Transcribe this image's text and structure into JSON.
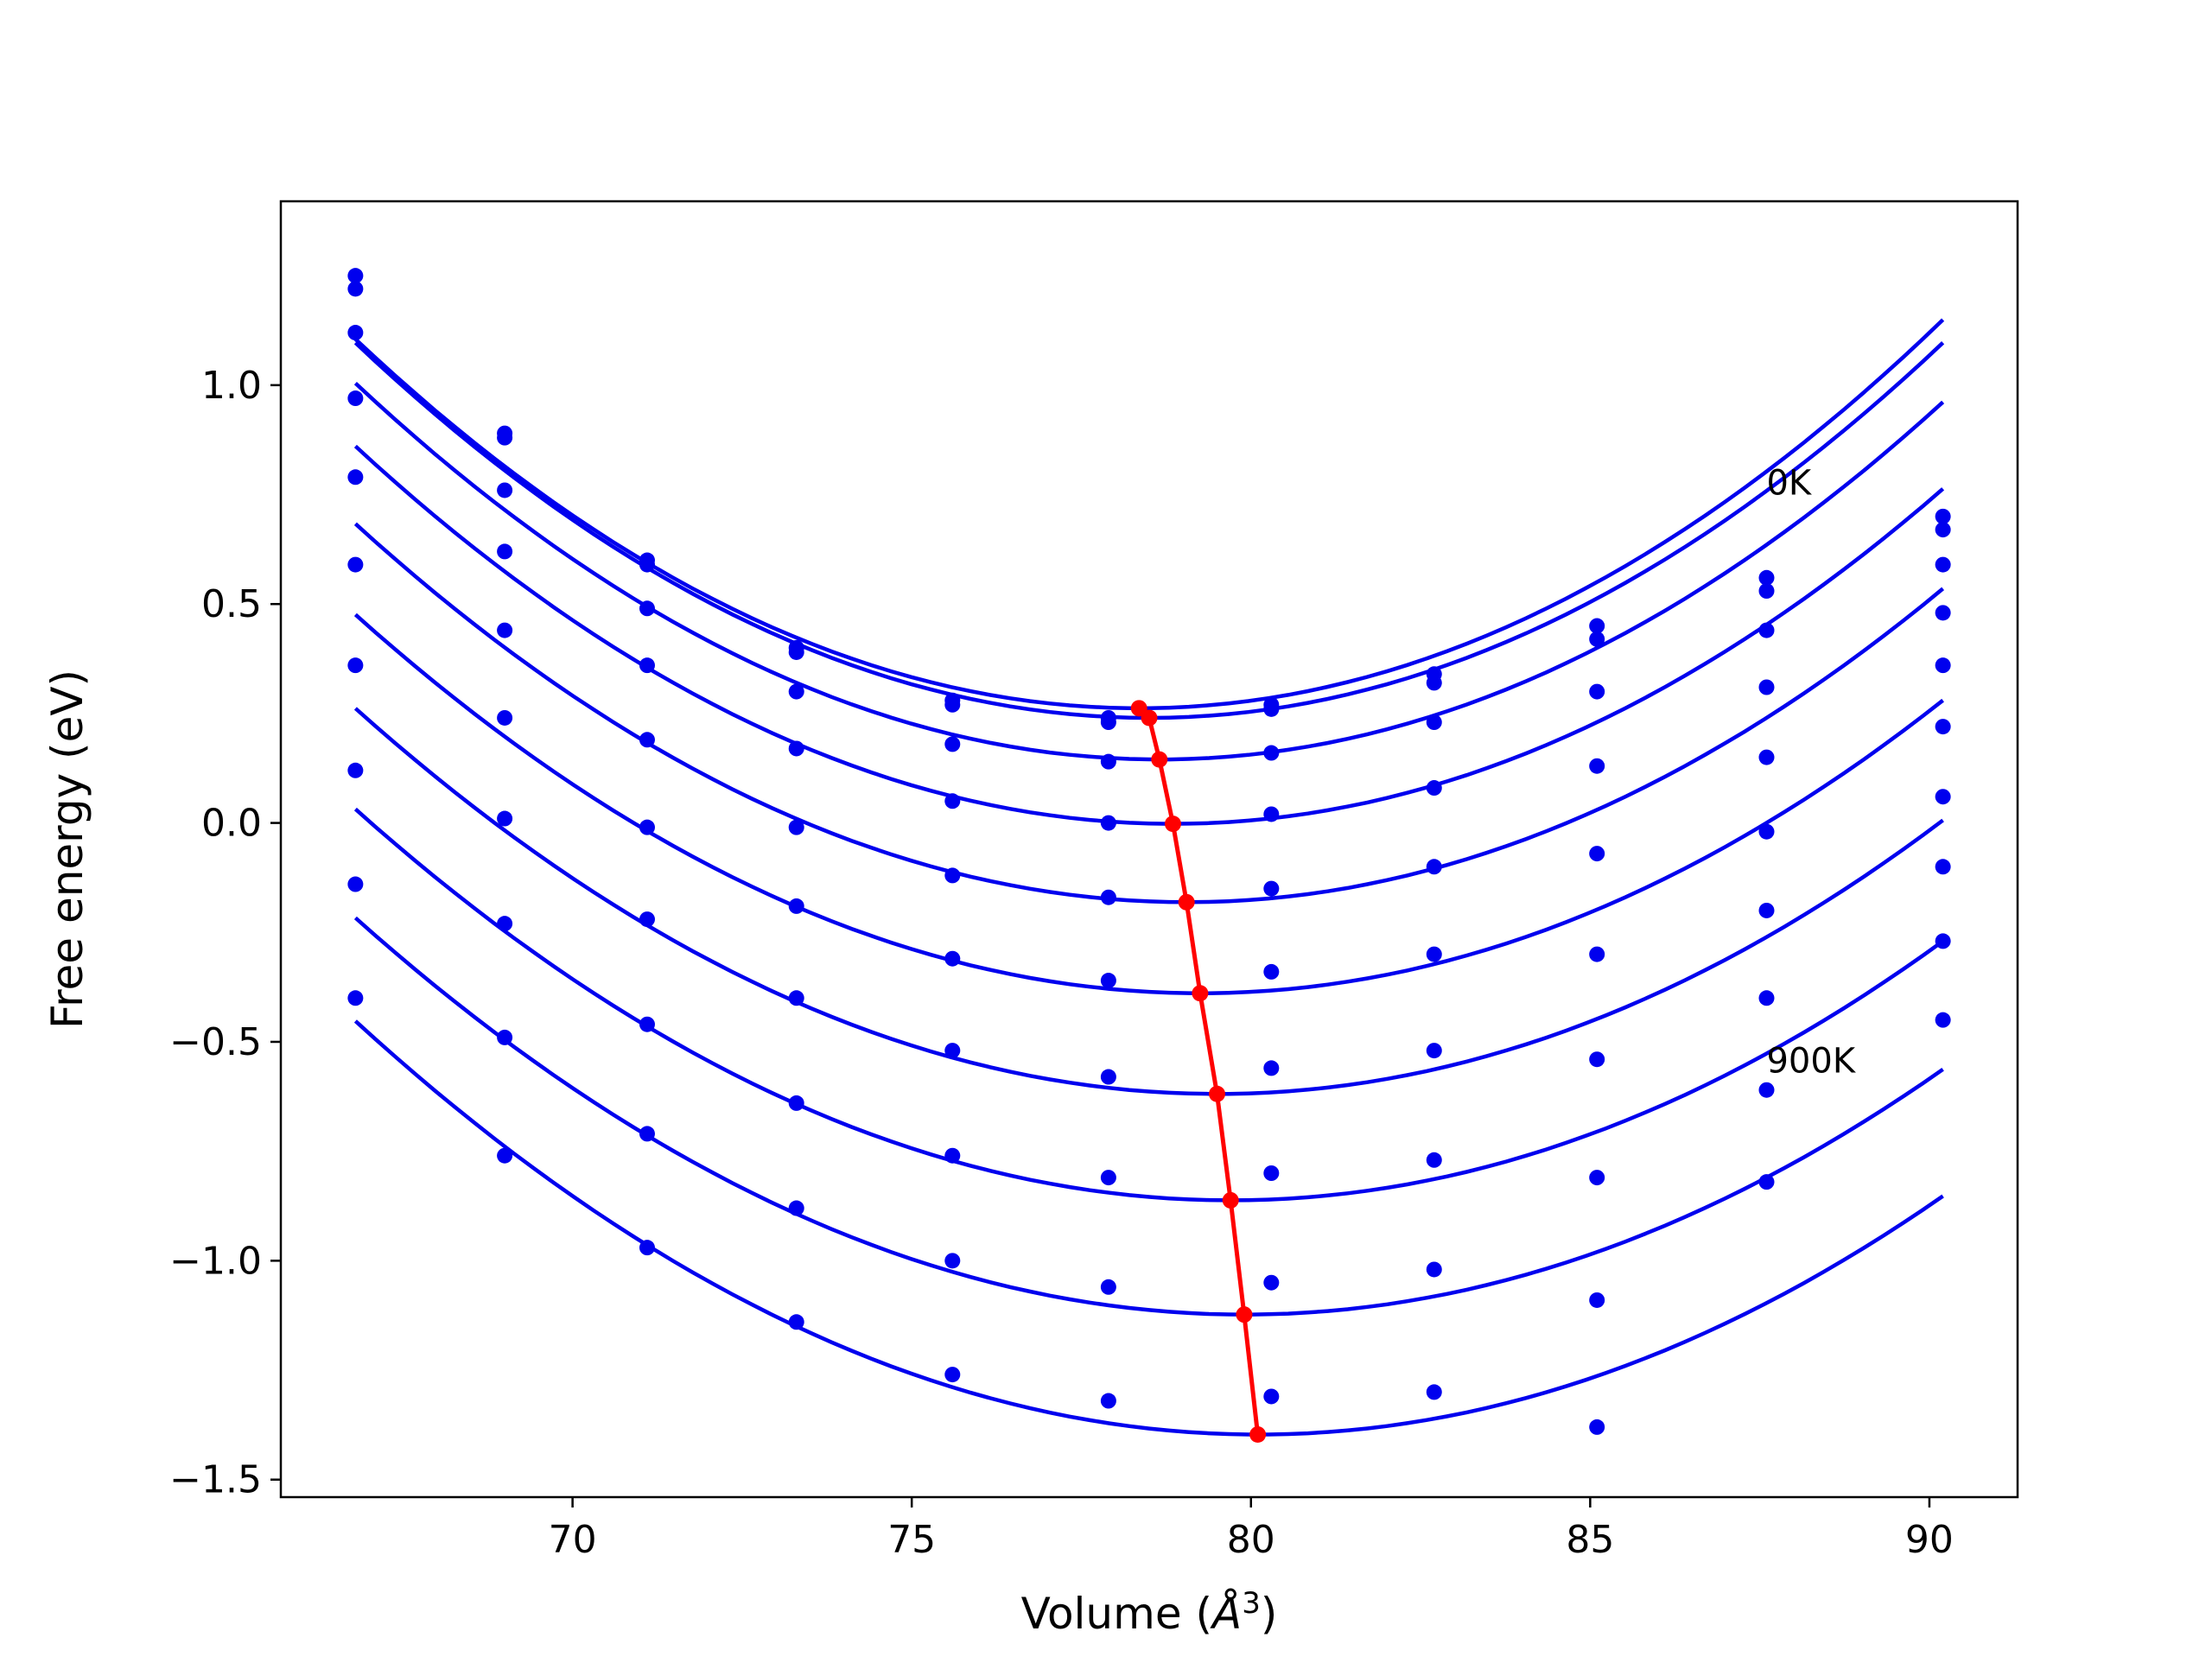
{
  "chart_data": {
    "type": "scatter",
    "xlabel_main": "Volume (",
    "xlabel_unit": "Å",
    "xlabel_sup": "3",
    "xlabel_close": ")",
    "ylabel": "Free energy (eV)",
    "xlim": [
      65.7,
      91.3
    ],
    "ylim": [
      -1.54,
      1.42
    ],
    "xticks": [
      70,
      75,
      80,
      85,
      90
    ],
    "yticks": [
      1.0,
      0.5,
      0.0,
      -0.5,
      -1.0,
      -1.5
    ],
    "xtick_labels": [
      "70",
      "75",
      "80",
      "85",
      "90"
    ],
    "ytick_labels": [
      "1.0",
      "0.5",
      "0.0",
      "−0.5",
      "−1.0",
      "−1.5"
    ],
    "grid": false,
    "volumes": [
      66.8,
      69.0,
      71.1,
      73.3,
      75.6,
      77.9,
      80.3,
      82.7,
      85.1,
      87.6,
      90.2
    ],
    "series": [
      {
        "points": [
          1.25,
          0.89,
          0.6,
          0.4,
          0.28,
          0.23,
          0.27,
          0.34,
          0.45,
          0.56,
          0.7
        ],
        "fit": {
          "a": 0.00632,
          "vmin": 78.35,
          "fmin": 0.262,
          "vstart": 66.8,
          "vend": 90.2
        }
      },
      {
        "points": [
          1.22,
          0.88,
          0.59,
          0.39,
          0.27,
          0.24,
          0.26,
          0.32,
          0.42,
          0.53,
          0.67
        ],
        "fit": {
          "a": 0.00626,
          "vmin": 78.5,
          "fmin": 0.24,
          "vstart": 66.8,
          "vend": 90.2
        }
      },
      {
        "points": [
          1.12,
          0.76,
          0.49,
          0.3,
          0.18,
          0.14,
          0.16,
          0.23,
          0.3,
          0.44,
          0.59
        ],
        "fit": {
          "a": 0.00612,
          "vmin": 78.65,
          "fmin": 0.145,
          "vstart": 66.8,
          "vend": 90.2
        }
      },
      {
        "points": [
          0.97,
          0.62,
          0.36,
          0.17,
          0.05,
          0.0,
          0.02,
          0.08,
          0.13,
          0.31,
          0.48
        ],
        "fit": {
          "a": 0.00594,
          "vmin": 78.85,
          "fmin": -0.002,
          "vstart": 66.8,
          "vend": 90.2
        }
      },
      {
        "points": [
          0.79,
          0.44,
          0.19,
          -0.01,
          -0.12,
          -0.17,
          -0.15,
          -0.1,
          -0.07,
          0.15,
          0.36
        ],
        "fit": {
          "a": 0.00576,
          "vmin": 79.05,
          "fmin": -0.181,
          "vstart": 66.8,
          "vend": 90.2
        }
      },
      {
        "points": [
          0.59,
          0.24,
          -0.01,
          -0.19,
          -0.31,
          -0.36,
          -0.34,
          -0.3,
          -0.3,
          -0.02,
          0.22
        ],
        "fit": {
          "a": 0.00558,
          "vmin": 79.25,
          "fmin": -0.389,
          "vstart": 66.8,
          "vend": 90.2
        }
      },
      {
        "points": [
          0.36,
          0.01,
          -0.22,
          -0.4,
          -0.52,
          -0.58,
          -0.56,
          -0.52,
          -0.54,
          -0.2,
          0.06
        ],
        "fit": {
          "a": 0.00546,
          "vmin": 79.5,
          "fmin": -0.619,
          "vstart": 66.8,
          "vend": 90.2
        }
      },
      {
        "points": [
          0.12,
          -0.23,
          -0.46,
          -0.64,
          -0.76,
          -0.81,
          -0.8,
          -0.77,
          -0.81,
          -0.4,
          -0.1
        ],
        "fit": {
          "a": 0.00537,
          "vmin": 79.7,
          "fmin": -0.862,
          "vstart": 66.8,
          "vend": 90.2
        }
      },
      {
        "points": [
          -0.14,
          -0.49,
          -0.71,
          -0.88,
          -1.0,
          -1.06,
          -1.05,
          -1.02,
          -1.09,
          -0.61,
          -0.27
        ],
        "fit": {
          "a": 0.00528,
          "vmin": 79.9,
          "fmin": -1.123,
          "vstart": 66.8,
          "vend": 90.2
        }
      },
      {
        "points": [
          -0.4,
          -0.76,
          -0.97,
          -1.14,
          -1.26,
          -1.32,
          -1.31,
          -1.3,
          -1.38,
          -0.82,
          -0.45
        ],
        "fit": {
          "a": 0.00534,
          "vmin": 80.1,
          "fmin": -1.397,
          "vstart": 66.8,
          "vend": 90.2
        }
      }
    ],
    "minimum_path": {
      "x": [
        78.35,
        78.5,
        78.65,
        78.85,
        79.05,
        79.25,
        79.5,
        79.7,
        79.9,
        80.1
      ],
      "y": [
        0.262,
        0.24,
        0.145,
        -0.002,
        -0.181,
        -0.389,
        -0.619,
        -0.862,
        -1.123,
        -1.397
      ]
    },
    "annotations": [
      {
        "text": "0K",
        "x": 87.6,
        "y": 0.75
      },
      {
        "text": "900K",
        "x": 87.6,
        "y": -0.57
      }
    ],
    "colors": {
      "curve": "#0000ee",
      "minimum_path": "#ff0000",
      "axes": "#000000"
    }
  }
}
